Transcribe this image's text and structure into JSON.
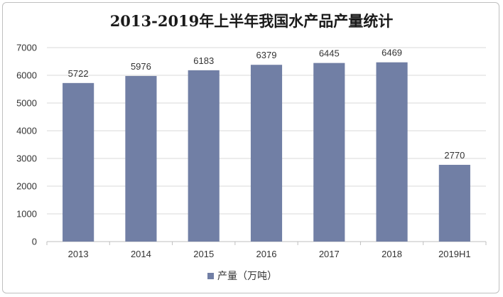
{
  "chart_data": {
    "type": "bar",
    "title": "2013-2019年上半年我国水产品产量统计",
    "categories": [
      "2013",
      "2014",
      "2015",
      "2016",
      "2017",
      "2018",
      "2019H1"
    ],
    "series": [
      {
        "name": "产量（万吨）",
        "values": [
          5722,
          5976,
          6183,
          6379,
          6445,
          6469,
          2770
        ],
        "color": "#717fa5"
      }
    ],
    "ylim": [
      0,
      7000
    ],
    "yticks": [
      0,
      1000,
      2000,
      3000,
      4000,
      5000,
      6000,
      7000
    ],
    "grid": true,
    "legend_position": "bottom"
  }
}
